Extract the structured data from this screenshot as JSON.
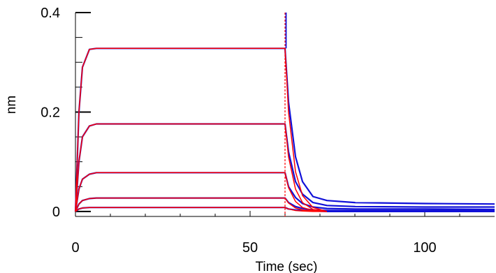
{
  "chart_data": {
    "type": "line",
    "title": "",
    "xlabel": "Time (sec)",
    "ylabel": "nm",
    "xlim": [
      0,
      120
    ],
    "ylim": [
      -0.01,
      0.4
    ],
    "xticks": [
      0,
      50,
      100
    ],
    "xtick_labels": [
      "0",
      "50",
      "100"
    ],
    "yticks": [
      0,
      0.2,
      0.4
    ],
    "ytick_labels": [
      "0",
      "0.2",
      "0.4"
    ],
    "grid": false,
    "legend": "none",
    "association_end": 60,
    "dissociation_spike_peak": 0.4,
    "colors": {
      "measured": "#1010d8",
      "fit": "#ff0000",
      "axes": "#000000"
    },
    "series": [
      {
        "kind": "measured",
        "plateau": 0.328,
        "x": [
          0,
          1,
          2,
          4,
          6,
          10,
          60,
          61,
          63,
          65,
          68,
          72,
          80,
          100,
          120
        ],
        "y": [
          0.0,
          0.2,
          0.29,
          0.326,
          0.328,
          0.328,
          0.328,
          0.22,
          0.11,
          0.06,
          0.03,
          0.022,
          0.018,
          0.016,
          0.015
        ]
      },
      {
        "kind": "measured",
        "plateau": 0.176,
        "x": [
          0,
          1,
          2,
          4,
          6,
          10,
          60,
          61,
          63,
          65,
          68,
          72,
          80,
          100,
          120
        ],
        "y": [
          0.0,
          0.1,
          0.15,
          0.172,
          0.176,
          0.176,
          0.176,
          0.12,
          0.06,
          0.035,
          0.018,
          0.012,
          0.01,
          0.009,
          0.009
        ]
      },
      {
        "kind": "measured",
        "plateau": 0.078,
        "x": [
          0,
          1,
          2,
          4,
          6,
          10,
          60,
          61,
          63,
          65,
          68,
          72,
          80,
          100,
          120
        ],
        "y": [
          0.0,
          0.045,
          0.065,
          0.075,
          0.078,
          0.078,
          0.078,
          0.05,
          0.028,
          0.016,
          0.009,
          0.006,
          0.005,
          0.005,
          0.004
        ]
      },
      {
        "kind": "measured",
        "plateau": 0.027,
        "x": [
          0,
          1,
          2,
          4,
          6,
          10,
          60,
          61,
          63,
          65,
          68,
          72,
          80,
          100,
          120
        ],
        "y": [
          0.0,
          0.015,
          0.022,
          0.026,
          0.027,
          0.027,
          0.027,
          0.018,
          0.01,
          0.006,
          0.003,
          0.002,
          0.002,
          0.002,
          0.002
        ]
      },
      {
        "kind": "measured",
        "plateau": 0.008,
        "x": [
          0,
          1,
          2,
          4,
          6,
          10,
          60,
          61,
          63,
          65,
          68,
          72,
          80,
          100,
          120
        ],
        "y": [
          0.0,
          0.005,
          0.007,
          0.008,
          0.008,
          0.008,
          0.008,
          0.005,
          0.003,
          0.002,
          0.001,
          0.0,
          0.0,
          0.0,
          0.0
        ]
      },
      {
        "kind": "fit",
        "plateau": 0.328,
        "x": [
          0,
          1,
          2,
          4,
          6,
          10,
          60,
          61,
          63,
          65,
          68,
          72
        ],
        "y": [
          0.0,
          0.2,
          0.29,
          0.326,
          0.328,
          0.328,
          0.328,
          0.2,
          0.08,
          0.032,
          0.008,
          0.0
        ]
      },
      {
        "kind": "fit",
        "plateau": 0.176,
        "x": [
          0,
          1,
          2,
          4,
          6,
          10,
          60,
          61,
          63,
          65,
          68,
          72
        ],
        "y": [
          0.0,
          0.1,
          0.15,
          0.172,
          0.176,
          0.176,
          0.176,
          0.11,
          0.045,
          0.018,
          0.004,
          0.0
        ]
      },
      {
        "kind": "fit",
        "plateau": 0.078,
        "x": [
          0,
          1,
          2,
          4,
          6,
          10,
          60,
          61,
          63,
          65,
          68,
          72
        ],
        "y": [
          0.0,
          0.045,
          0.065,
          0.075,
          0.078,
          0.078,
          0.078,
          0.048,
          0.02,
          0.008,
          0.002,
          0.0
        ]
      },
      {
        "kind": "fit",
        "plateau": 0.027,
        "x": [
          0,
          1,
          2,
          4,
          6,
          10,
          60,
          61,
          63,
          65,
          68,
          72
        ],
        "y": [
          0.0,
          0.015,
          0.022,
          0.026,
          0.027,
          0.027,
          0.027,
          0.017,
          0.007,
          0.003,
          0.001,
          0.0
        ]
      },
      {
        "kind": "fit",
        "plateau": 0.008,
        "x": [
          0,
          1,
          2,
          4,
          6,
          10,
          60,
          61,
          63,
          65,
          68,
          72
        ],
        "y": [
          0.0,
          0.005,
          0.007,
          0.008,
          0.008,
          0.008,
          0.008,
          0.005,
          0.002,
          0.001,
          0.0,
          0.0
        ]
      }
    ]
  }
}
